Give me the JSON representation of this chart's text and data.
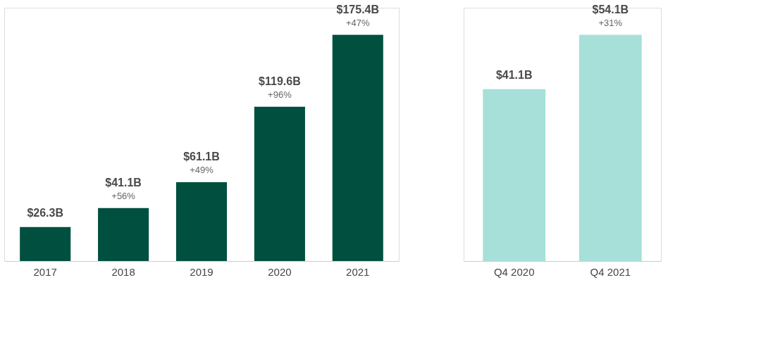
{
  "chart_data": [
    {
      "type": "bar",
      "categories": [
        "2017",
        "2018",
        "2019",
        "2020",
        "2021"
      ],
      "values": [
        26.3,
        41.1,
        61.1,
        119.6,
        175.4
      ],
      "color": "#004f3f",
      "value_labels": [
        "$26.3B",
        "$41.1B",
        "$61.1B",
        "$119.6B",
        "$175.4B"
      ],
      "annotations": [
        {
          "text": "+56%",
          "x": "2018",
          "y": 41.1
        },
        {
          "text": "+49%",
          "x": "2019",
          "y": 61.1
        },
        {
          "text": "+96%",
          "x": "2020",
          "y": 119.6
        },
        {
          "text": "+47%",
          "x": "2021",
          "y": 175.4
        }
      ]
    },
    {
      "type": "bar",
      "categories": [
        "Q4 2020",
        "Q4 2021"
      ],
      "values": [
        41.1,
        54.1
      ],
      "color": "#a6e0d9",
      "value_labels": [
        "$41.1B",
        "$54.1B"
      ],
      "annotations": [
        {
          "text": "+31%",
          "x": "Q4 2021",
          "y": 54.1
        }
      ]
    }
  ]
}
